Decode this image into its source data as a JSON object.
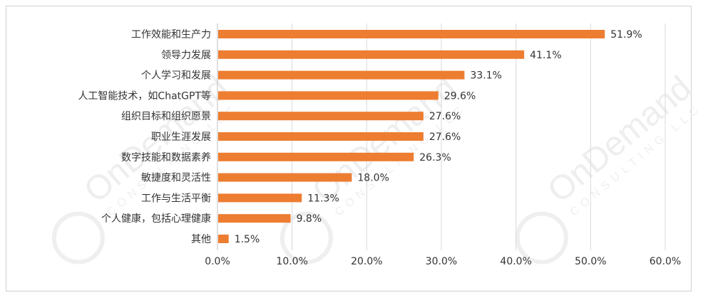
{
  "watermark": {
    "brand": "OnDemand",
    "sub": "CONSULTING LLC"
  },
  "colors": {
    "bar": "#ED7D31",
    "grid": "#d9d9d9",
    "axis": "#bfbfbf",
    "text": "#333333"
  },
  "chart_data": {
    "type": "bar",
    "orientation": "horizontal",
    "categories": [
      "工作效能和生产力",
      "领导力发展",
      "个人学习和发展",
      "人工智能技术，如ChatGPT等",
      "组织目标和组织愿景",
      "职业生涯发展",
      "数字技能和数据素养",
      "敏捷度和灵活性",
      "工作与生活平衡",
      "个人健康，包括心理健康",
      "其他"
    ],
    "values": [
      51.9,
      41.1,
      33.1,
      29.6,
      27.6,
      27.6,
      26.3,
      18.0,
      11.3,
      9.8,
      1.5
    ],
    "value_labels": [
      "51.9%",
      "41.1%",
      "33.1%",
      "29.6%",
      "27.6%",
      "27.6%",
      "26.3%",
      "18.0%",
      "11.3%",
      "9.8%",
      "1.5%"
    ],
    "xlim": [
      0,
      60
    ],
    "xticks": [
      0,
      10,
      20,
      30,
      40,
      50,
      60
    ],
    "xtick_labels": [
      "0.0%",
      "10.0%",
      "20.0%",
      "30.0%",
      "40.0%",
      "50.0%",
      "60.0%"
    ],
    "grid": "vertical",
    "legend": "none",
    "title": "",
    "xlabel": "",
    "ylabel": ""
  }
}
